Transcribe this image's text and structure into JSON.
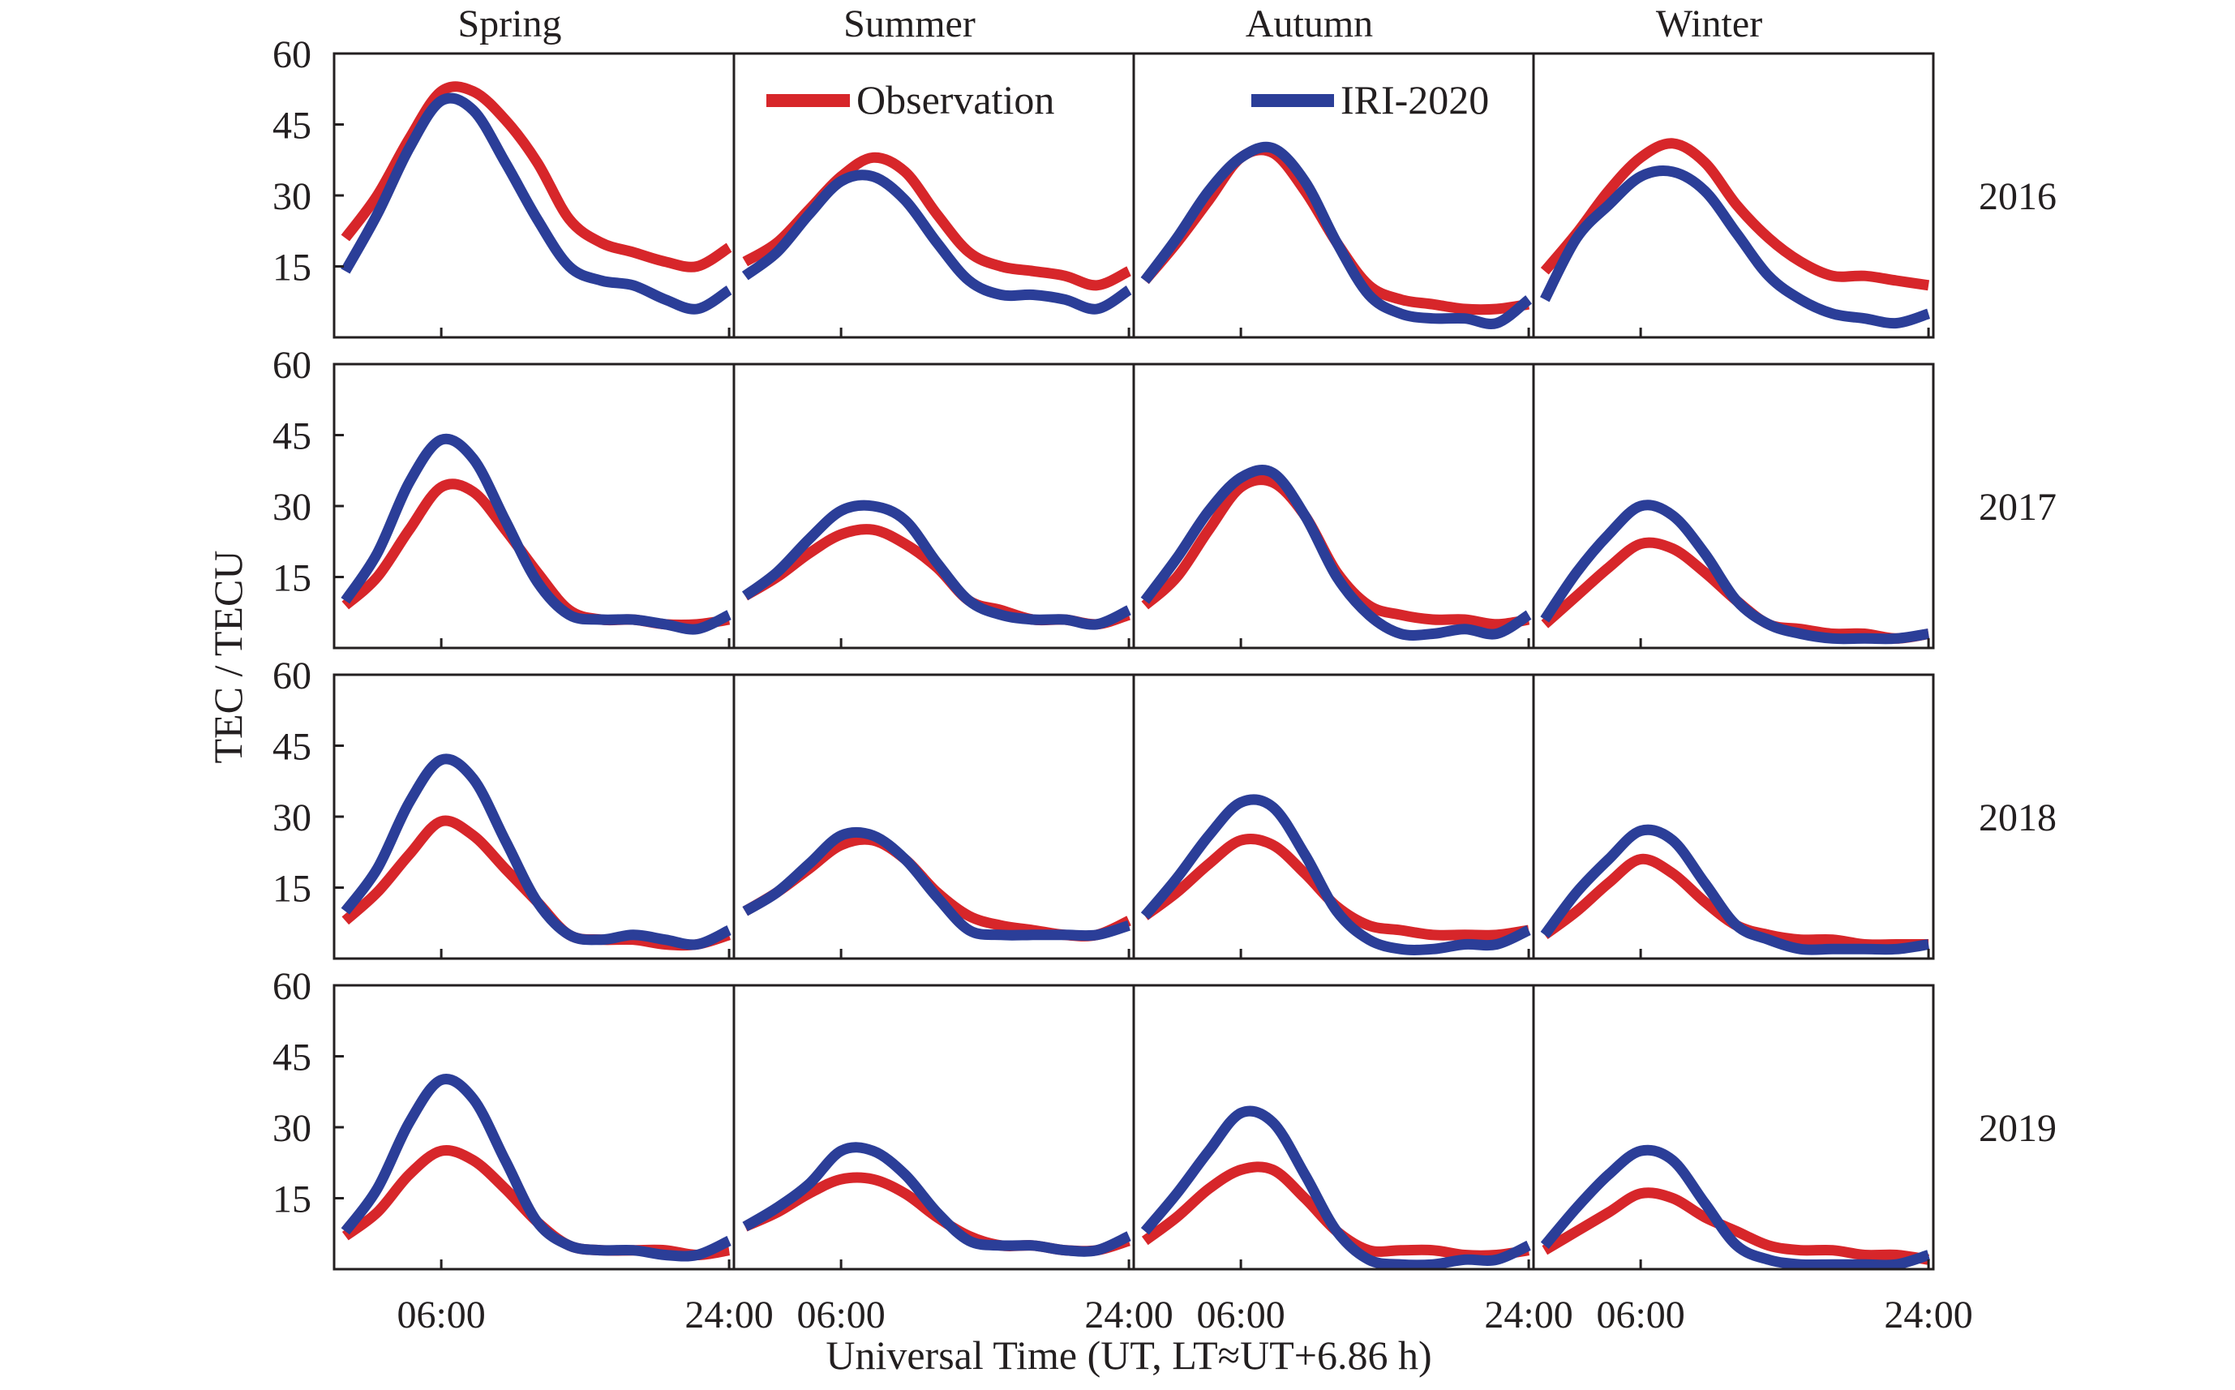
{
  "figure": {
    "ylabel": "TEC / TECU",
    "xlabel": "Universal Time (UT,  LT≈UT+6.86 h)"
  },
  "legend": {
    "observation": "Observation",
    "model": "IRI-2020",
    "placement": "top (inside Summer and Autumn panels of first row)"
  },
  "colors": {
    "observation": "#d7262a",
    "model": "#2b3e98",
    "axis": "#231f20"
  },
  "seasons": [
    "Spring",
    "Summer",
    "Autumn",
    "Winter"
  ],
  "years": [
    "2016",
    "2017",
    "2018",
    "2019"
  ],
  "y_ticks": [
    "60",
    "45",
    "30",
    "15"
  ],
  "x_ticks": [
    {
      "label": "06:00",
      "col": 0,
      "at": "06:00"
    },
    {
      "label": "24:00",
      "col": 0,
      "at": "24:00"
    },
    {
      "label": "06:00",
      "col": 1,
      "at": "06:00"
    },
    {
      "label": "24:00",
      "col": 1,
      "at": "24:00"
    },
    {
      "label": "06:00",
      "col": 2,
      "at": "06:00"
    },
    {
      "label": "24:00",
      "col": 2,
      "at": "24:00"
    },
    {
      "label": "06:00",
      "col": 3,
      "at": "06:00"
    },
    {
      "label": "24:00",
      "col": 3,
      "at": "24:00"
    }
  ],
  "chart_data": {
    "type": "line",
    "layout": "4x4 small multiples (rows = years, columns = seasons)",
    "x_unit": "UT hours",
    "x_range": [
      -0.7,
      24.3
    ],
    "ylim": [
      0,
      60
    ],
    "y_ticks": [
      15,
      30,
      45,
      60
    ],
    "x_ticks": [
      6,
      24
    ],
    "x": [
      0,
      2,
      4,
      6,
      8,
      10,
      12,
      14,
      16,
      18,
      20,
      22,
      24
    ],
    "grid": false,
    "panels": [
      {
        "year": "2016",
        "season": "Spring",
        "series": [
          {
            "name": "Observation",
            "values": [
              21,
              30,
              42,
              52,
              52,
              46,
              37,
              25,
              20,
              18,
              16,
              15,
              19
            ]
          },
          {
            "name": "IRI-2020",
            "values": [
              14,
              26,
              40,
              50,
              48,
              37,
              25,
              15,
              12,
              11,
              8,
              6,
              10
            ]
          }
        ]
      },
      {
        "year": "2016",
        "season": "Summer",
        "series": [
          {
            "name": "Observation",
            "values": [
              16,
              20,
              27,
              34,
              38,
              35,
              26,
              18,
              15,
              14,
              13,
              11,
              14
            ]
          },
          {
            "name": "IRI-2020",
            "values": [
              13,
              18,
              26,
              33,
              34,
              29,
              20,
              12,
              9,
              9,
              8,
              6,
              10
            ]
          }
        ]
      },
      {
        "year": "2016",
        "season": "Autumn",
        "series": [
          {
            "name": "Observation",
            "values": [
              12,
              20,
              29,
              38,
              39,
              31,
              20,
              11,
              8,
              7,
              6,
              6,
              7
            ]
          },
          {
            "name": "IRI-2020",
            "values": [
              12,
              21,
              31,
              38,
              40,
              33,
              20,
              9,
              5,
              4,
              4,
              3,
              8
            ]
          }
        ]
      },
      {
        "year": "2016",
        "season": "Winter",
        "series": [
          {
            "name": "Observation",
            "values": [
              14,
              22,
              31,
              38,
              41,
              37,
              28,
              21,
              16,
              13,
              13,
              12,
              11
            ]
          },
          {
            "name": "IRI-2020",
            "values": [
              8,
              21,
              28,
              34,
              35,
              31,
              22,
              13,
              8,
              5,
              4,
              3,
              5
            ]
          }
        ]
      },
      {
        "year": "2017",
        "season": "Spring",
        "series": [
          {
            "name": "Observation",
            "values": [
              9,
              15,
              25,
              34,
              33,
              25,
              16,
              8,
              6,
              6,
              5,
              5,
              6
            ]
          },
          {
            "name": "IRI-2020",
            "values": [
              10,
              20,
              35,
              44,
              40,
              27,
              14,
              7,
              6,
              6,
              5,
              4,
              7
            ]
          }
        ]
      },
      {
        "year": "2017",
        "season": "Summer",
        "series": [
          {
            "name": "Observation",
            "values": [
              11,
              15,
              20,
              24,
              25,
              22,
              17,
              10,
              8,
              6,
              6,
              5,
              7
            ]
          },
          {
            "name": "IRI-2020",
            "values": [
              11,
              16,
              23,
              29,
              30,
              27,
              18,
              10,
              7,
              6,
              6,
              5,
              8
            ]
          }
        ]
      },
      {
        "year": "2017",
        "season": "Autumn",
        "series": [
          {
            "name": "Observation",
            "values": [
              9,
              15,
              25,
              34,
              35,
              28,
              16,
              9,
              7,
              6,
              6,
              5,
              6
            ]
          },
          {
            "name": "IRI-2020",
            "values": [
              10,
              19,
              29,
              36,
              37,
              28,
              15,
              7,
              3,
              3,
              4,
              3,
              7
            ]
          }
        ]
      },
      {
        "year": "2017",
        "season": "Winter",
        "series": [
          {
            "name": "Observation",
            "values": [
              5,
              11,
              17,
              22,
              21,
              16,
              10,
              5,
              4,
              3,
              3,
              2,
              3
            ]
          },
          {
            "name": "IRI-2020",
            "values": [
              6,
              16,
              24,
              30,
              28,
              20,
              10,
              5,
              3,
              2,
              2,
              2,
              3
            ]
          }
        ]
      },
      {
        "year": "2018",
        "season": "Spring",
        "series": [
          {
            "name": "Observation",
            "values": [
              8,
              14,
              22,
              29,
              26,
              19,
              12,
              5,
              4,
              4,
              3,
              3,
              5
            ]
          },
          {
            "name": "IRI-2020",
            "values": [
              10,
              19,
              33,
              42,
              38,
              25,
              12,
              5,
              4,
              5,
              4,
              3,
              6
            ]
          }
        ]
      },
      {
        "year": "2018",
        "season": "Summer",
        "series": [
          {
            "name": "Observation",
            "values": [
              10,
              14,
              19,
              24,
              25,
              21,
              14,
              9,
              7,
              6,
              5,
              5,
              8
            ]
          },
          {
            "name": "IRI-2020",
            "values": [
              10,
              14,
              20,
              26,
              26,
              21,
              13,
              6,
              5,
              5,
              5,
              5,
              7
            ]
          }
        ]
      },
      {
        "year": "2018",
        "season": "Autumn",
        "series": [
          {
            "name": "Observation",
            "values": [
              9,
              14,
              20,
              25,
              24,
              18,
              11,
              7,
              6,
              5,
              5,
              5,
              6
            ]
          },
          {
            "name": "IRI-2020",
            "values": [
              9,
              17,
              26,
              33,
              32,
              22,
              10,
              4,
              2,
              2,
              3,
              3,
              6
            ]
          }
        ]
      },
      {
        "year": "2018",
        "season": "Winter",
        "series": [
          {
            "name": "Observation",
            "values": [
              5,
              10,
              16,
              21,
              18,
              12,
              7,
              5,
              4,
              4,
              3,
              3,
              3
            ]
          },
          {
            "name": "IRI-2020",
            "values": [
              5,
              14,
              21,
              27,
              25,
              16,
              7,
              4,
              2,
              2,
              2,
              2,
              3
            ]
          }
        ]
      },
      {
        "year": "2019",
        "season": "Spring",
        "series": [
          {
            "name": "Observation",
            "values": [
              7,
              12,
              20,
              25,
              23,
              17,
              10,
              5,
              4,
              4,
              4,
              3,
              4
            ]
          },
          {
            "name": "IRI-2020",
            "values": [
              8,
              17,
              31,
              40,
              36,
              23,
              10,
              5,
              4,
              4,
              3,
              3,
              6
            ]
          }
        ]
      },
      {
        "year": "2019",
        "season": "Summer",
        "series": [
          {
            "name": "Observation",
            "values": [
              9,
              12,
              16,
              19,
              19,
              16,
              11,
              7,
              5,
              5,
              4,
              4,
              6
            ]
          },
          {
            "name": "IRI-2020",
            "values": [
              9,
              13,
              18,
              25,
              25,
              20,
              12,
              6,
              5,
              5,
              4,
              4,
              7
            ]
          }
        ]
      },
      {
        "year": "2019",
        "season": "Autumn",
        "series": [
          {
            "name": "Observation",
            "values": [
              6,
              11,
              17,
              21,
              21,
              15,
              8,
              4,
              4,
              4,
              3,
              3,
              4
            ]
          },
          {
            "name": "IRI-2020",
            "values": [
              8,
              16,
              25,
              33,
              31,
              20,
              8,
              2,
              1,
              1,
              2,
              2,
              5
            ]
          }
        ]
      },
      {
        "year": "2019",
        "season": "Winter",
        "series": [
          {
            "name": "Observation",
            "values": [
              4,
              8,
              12,
              16,
              15,
              11,
              8,
              5,
              4,
              4,
              3,
              3,
              2
            ]
          },
          {
            "name": "IRI-2020",
            "values": [
              5,
              13,
              20,
              25,
              23,
              14,
              5,
              2,
              1,
              1,
              1,
              1,
              3
            ]
          }
        ]
      }
    ]
  }
}
